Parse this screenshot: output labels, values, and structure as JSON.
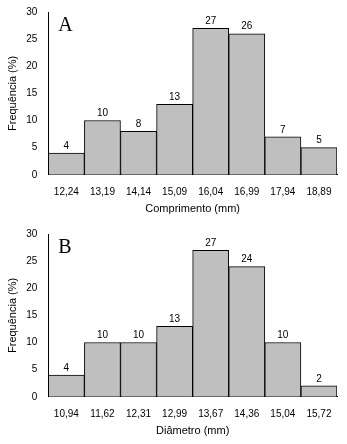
{
  "chart_data": [
    {
      "type": "bar",
      "title": "A",
      "xlabel": "Comprimento (mm)",
      "ylabel": "Frequência (%)",
      "categories": [
        "12,24",
        "13,19",
        "14,14",
        "15,09",
        "16,04",
        "16,99",
        "17,94",
        "18,89"
      ],
      "values": [
        4,
        10,
        8,
        13,
        27,
        26,
        7,
        5
      ],
      "color": "#bfbfbf",
      "ylim": [
        0,
        30
      ],
      "yticks": [
        0,
        5,
        10,
        15,
        20,
        25,
        30
      ],
      "grid": false,
      "data_labels": true
    },
    {
      "type": "bar",
      "title": "B",
      "xlabel": "Diâmetro (mm)",
      "ylabel": "Frequência (%)",
      "categories": [
        "10,94",
        "11,62",
        "12,31",
        "12,99",
        "13,67",
        "14,36",
        "15,04",
        "15,72"
      ],
      "values": [
        4,
        10,
        10,
        13,
        27,
        24,
        10,
        2
      ],
      "color": "#bfbfbf",
      "ylim": [
        0,
        30
      ],
      "yticks": [
        0,
        5,
        10,
        15,
        20,
        25,
        30
      ],
      "grid": false,
      "data_labels": true
    }
  ]
}
